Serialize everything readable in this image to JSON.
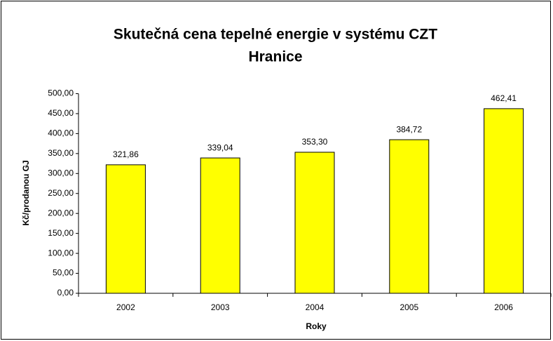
{
  "chart_data": {
    "type": "bar",
    "title": [
      "Skutečná cena tepelné energie v systému CZT",
      "Hranice"
    ],
    "x_label": "Roky",
    "y_label": "Kč/prodanou GJ",
    "categories": [
      "2002",
      "2003",
      "2004",
      "2005",
      "2006"
    ],
    "values": [
      321.86,
      339.04,
      353.3,
      384.72,
      462.41
    ],
    "value_labels": [
      "321,86",
      "339,04",
      "353,30",
      "384,72",
      "462,41"
    ],
    "color": "#ffff00",
    "ylim": [
      0,
      500
    ],
    "yticks": [
      {
        "value": 0,
        "label": "0,00"
      },
      {
        "value": 50,
        "label": "50,00"
      },
      {
        "value": 100,
        "label": "100,00"
      },
      {
        "value": 150,
        "label": "150,00"
      },
      {
        "value": 200,
        "label": "200,00"
      },
      {
        "value": 250,
        "label": "250,00"
      },
      {
        "value": 300,
        "label": "300,00"
      },
      {
        "value": 350,
        "label": "350,00"
      },
      {
        "value": 400,
        "label": "400,00"
      },
      {
        "value": 450,
        "label": "450,00"
      },
      {
        "value": 500,
        "label": "500,00"
      }
    ],
    "grid": false
  }
}
